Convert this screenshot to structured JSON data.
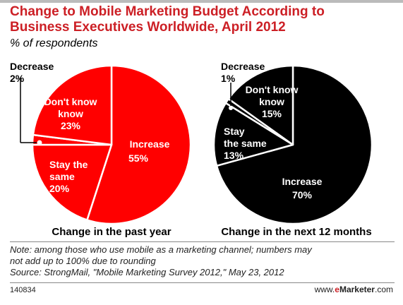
{
  "title_line1": "Change to Mobile Marketing Budget According to",
  "title_line2": "Business Executives Worldwide, April 2012",
  "subtitle": "% of respondents",
  "colors": {
    "accent": "#cc1f25",
    "left_pie": "#ff0000",
    "right_pie": "#000000",
    "slice_border": "#ffffff"
  },
  "chart_data": [
    {
      "type": "pie",
      "caption": "Change in the past year",
      "slices": [
        {
          "label": "Increase",
          "value": 55,
          "display": "55%"
        },
        {
          "label": "Stay the same",
          "value": 20,
          "display": "20%"
        },
        {
          "label": "Decrease",
          "value": 2,
          "display": "2%"
        },
        {
          "label": "Don't know",
          "value": 23,
          "display": "23%"
        }
      ]
    },
    {
      "type": "pie",
      "caption": "Change in the next 12 months",
      "slices": [
        {
          "label": "Increase",
          "value": 70,
          "display": "70%"
        },
        {
          "label": "Stay the same",
          "value": 13,
          "display": "13%"
        },
        {
          "label": "Decrease",
          "value": 1,
          "display": "1%"
        },
        {
          "label": "Don't know",
          "value": 15,
          "display": "15%"
        }
      ]
    }
  ],
  "note_line1": "Note: among those who use mobile as a marketing channel; numbers may",
  "note_line2": "not add up to 100% due to rounding",
  "source": "Source: StrongMail, \"Mobile Marketing Survey 2012,\" May 23, 2012",
  "footer_id": "140834",
  "brand_prefix": "www.",
  "brand_e": "e",
  "brand_name": "Marketer",
  "brand_suffix": ".com"
}
